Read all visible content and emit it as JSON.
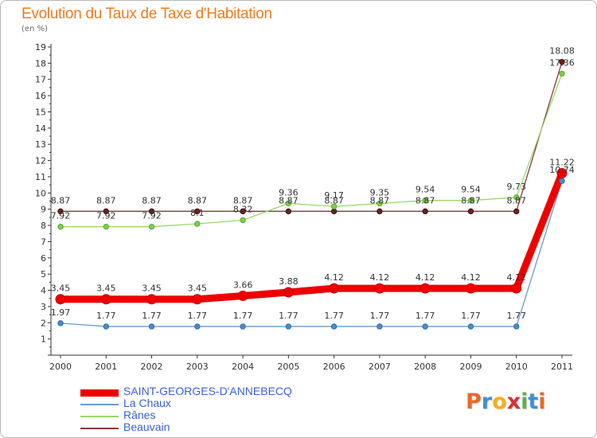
{
  "chart_data": {
    "type": "line",
    "title": "Evolution du Taux de Taxe d'Habitation",
    "ylabel": "(en %)",
    "xlabel": "",
    "categories": [
      "2000",
      "2001",
      "2002",
      "2003",
      "2004",
      "2005",
      "2006",
      "2007",
      "2008",
      "2009",
      "2010",
      "2011"
    ],
    "ylim": [
      0,
      19
    ],
    "yticks": [
      "1",
      "2",
      "3",
      "4",
      "5",
      "6",
      "7",
      "8",
      "9",
      "10",
      "11",
      "12",
      "13",
      "14",
      "15",
      "16",
      "17",
      "18",
      "19"
    ],
    "series": [
      {
        "name": "SAINT-GEORGES-D'ANNEBECQ",
        "color": "#ee0000",
        "values": [
          3.45,
          3.45,
          3.45,
          3.45,
          3.66,
          3.88,
          4.12,
          4.12,
          4.12,
          4.12,
          4.12,
          11.22
        ],
        "labels": [
          "3.45",
          "3.45",
          "3.45",
          "3.45",
          "3.66",
          "3.88",
          "4.12",
          "4.12",
          "4.12",
          "4.12",
          "4.12",
          "11.22"
        ]
      },
      {
        "name": "La Chaux",
        "color": "#6a9ccc",
        "values": [
          1.97,
          1.77,
          1.77,
          1.77,
          1.77,
          1.77,
          1.77,
          1.77,
          1.77,
          1.77,
          1.77,
          10.74
        ],
        "labels": [
          "1.97",
          "1.77",
          "1.77",
          "1.77",
          "1.77",
          "1.77",
          "1.77",
          "1.77",
          "1.77",
          "1.77",
          "1.77",
          "10.74"
        ]
      },
      {
        "name": "Rânes",
        "color": "#99d96a",
        "values": [
          7.92,
          7.92,
          7.92,
          8.1,
          8.32,
          9.36,
          9.17,
          9.35,
          9.54,
          9.54,
          9.73,
          17.36
        ],
        "labels": [
          "7.92",
          "7.92",
          "7.92",
          "8.1",
          "8.32",
          "9.36",
          "9.17",
          "9.35",
          "9.54",
          "9.54",
          "9.73",
          "17.36"
        ]
      },
      {
        "name": "Beauvain",
        "color": "#8a3a3a",
        "values": [
          8.87,
          8.87,
          8.87,
          8.87,
          8.87,
          8.87,
          8.87,
          8.87,
          8.87,
          8.87,
          8.87,
          18.08
        ],
        "labels": [
          "8.87",
          "8.87",
          "8.87",
          "8.87",
          "8.87",
          "8.87",
          "8.87",
          "8.87",
          "8.87",
          "8.87",
          "8.87",
          "18.08"
        ]
      }
    ]
  },
  "logo": {
    "letters": [
      "P",
      "r",
      "o",
      "x",
      "i",
      "t",
      "i"
    ],
    "colors": [
      "#e8692b",
      "#3f8fd6",
      "#f2b01e",
      "#d9303a",
      "#5ab645",
      "#3f8fd6",
      "#e8692b"
    ]
  }
}
